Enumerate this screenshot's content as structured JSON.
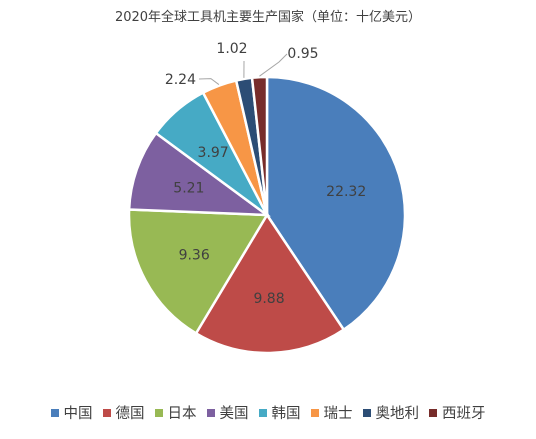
{
  "chart_data": {
    "type": "pie",
    "title": "2020年全球工具机主要生产国家（单位：十亿美元）",
    "categories": [
      "中国",
      "德国",
      "日本",
      "美国",
      "韩国",
      "瑞士",
      "奥地利",
      "西班牙"
    ],
    "values": [
      22.32,
      9.88,
      9.36,
      5.21,
      3.97,
      2.24,
      1.02,
      0.95
    ],
    "colors": [
      "#4a7ebb",
      "#be4b48",
      "#98b954",
      "#7d60a0",
      "#46aac5",
      "#f79646",
      "#2c4d75",
      "#772c2a"
    ],
    "start_angle_deg": 0,
    "direction": "clockwise",
    "legend_position": "bottom",
    "data_labels": true
  }
}
